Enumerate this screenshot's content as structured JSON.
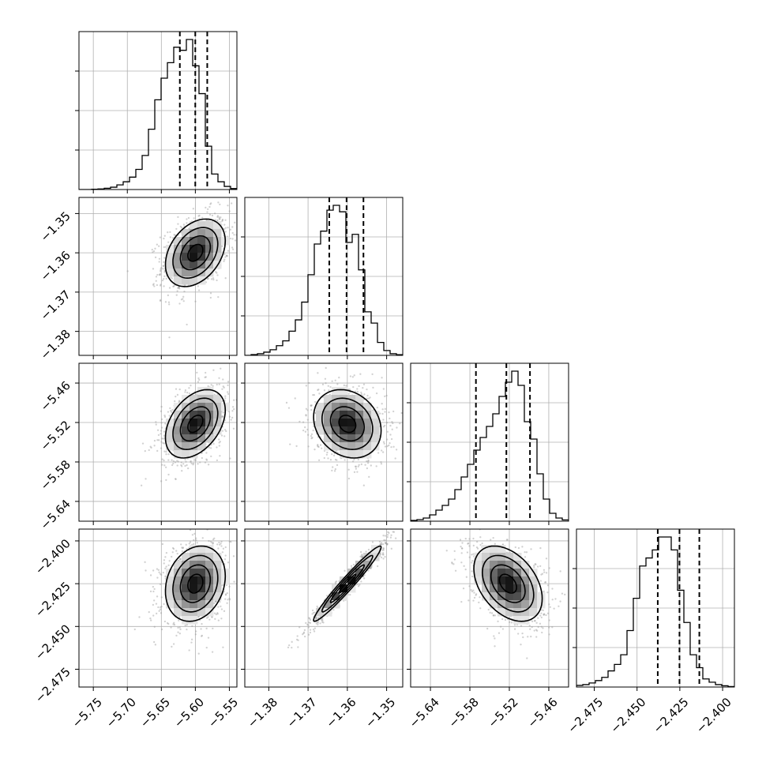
{
  "chart_data": {
    "type": "corner",
    "parameters": [
      {
        "ticks": [
          -5.75,
          -5.7,
          -5.65,
          -5.6,
          -5.55
        ],
        "tick_labels": [
          "−5.75",
          "−5.70",
          "−5.65",
          "−5.60",
          "−5.55"
        ],
        "range": [
          -5.7711,
          -5.5389
        ],
        "quantiles": [
          -5.6228,
          -5.6001,
          -5.5825
        ],
        "mean": -5.6,
        "sd": 0.022,
        "histogram": [
          0.0,
          0.0,
          0.002,
          0.004,
          0.008,
          0.015,
          0.03,
          0.05,
          0.08,
          0.13,
          0.22,
          0.39,
          0.58,
          0.72,
          0.82,
          0.92,
          0.9,
          0.97,
          0.8,
          0.62,
          0.28,
          0.1,
          0.05,
          0.02,
          0.006
        ]
      },
      {
        "ticks": [
          -1.38,
          -1.37,
          -1.36,
          -1.35
        ],
        "tick_labels": [
          "−1.38",
          "−1.37",
          "−1.36",
          "−1.35"
        ],
        "range": [
          -1.3861,
          -1.3459
        ],
        "quantiles": [
          -1.3646,
          -1.3602,
          -1.3559
        ],
        "mean": -1.36,
        "sd": 0.0043,
        "histogram": [
          0.0,
          0.005,
          0.01,
          0.02,
          0.035,
          0.06,
          0.09,
          0.15,
          0.22,
          0.33,
          0.5,
          0.69,
          0.77,
          0.9,
          0.93,
          0.89,
          0.7,
          0.75,
          0.53,
          0.27,
          0.2,
          0.08,
          0.03,
          0.01,
          0.004
        ]
      },
      {
        "ticks": [
          -5.64,
          -5.58,
          -5.52,
          -5.46
        ],
        "tick_labels": [
          "−5.64",
          "−5.58",
          "−5.52",
          "−5.46"
        ],
        "range": [
          -5.6701,
          -5.4299
        ],
        "quantiles": [
          -5.5708,
          -5.5245,
          -5.4886
        ],
        "mean": -5.522,
        "sd": 0.026,
        "histogram": [
          0.005,
          0.01,
          0.02,
          0.04,
          0.07,
          0.1,
          0.14,
          0.2,
          0.28,
          0.36,
          0.45,
          0.53,
          0.6,
          0.68,
          0.79,
          0.88,
          0.95,
          0.86,
          0.63,
          0.52,
          0.3,
          0.14,
          0.05,
          0.02,
          0.008
        ]
      },
      {
        "ticks": [
          -2.475,
          -2.45,
          -2.425,
          -2.4
        ],
        "tick_labels": [
          "−2.475",
          "−2.450",
          "−2.425",
          "−2.400"
        ],
        "range": [
          -2.4854,
          -2.3931
        ],
        "quantiles": [
          -2.4379,
          -2.4252,
          -2.4136
        ],
        "mean": -2.425,
        "sd": 0.011,
        "histogram": [
          0.01,
          0.015,
          0.025,
          0.04,
          0.06,
          0.1,
          0.14,
          0.2,
          0.35,
          0.55,
          0.75,
          0.8,
          0.85,
          0.93,
          0.93,
          0.85,
          0.6,
          0.4,
          0.2,
          0.12,
          0.05,
          0.03,
          0.015,
          0.008,
          0.003
        ]
      }
    ],
    "correlations": [
      [
        1.0,
        0.35,
        0.4,
        0.2
      ],
      [
        0.35,
        1.0,
        -0.2,
        0.97
      ],
      [
        0.4,
        -0.2,
        1.0,
        -0.4
      ],
      [
        0.2,
        0.97,
        -0.4,
        1.0
      ]
    ],
    "contour_levels_sigma": [
      0.5,
      1.0,
      1.5,
      2.0
    ],
    "quantile_line_style": "dashed",
    "grid": true,
    "colors": {
      "points": "#9a9a9a",
      "lines": "#000000",
      "grid": "#b0b0b0",
      "density_max": "#000000"
    }
  }
}
